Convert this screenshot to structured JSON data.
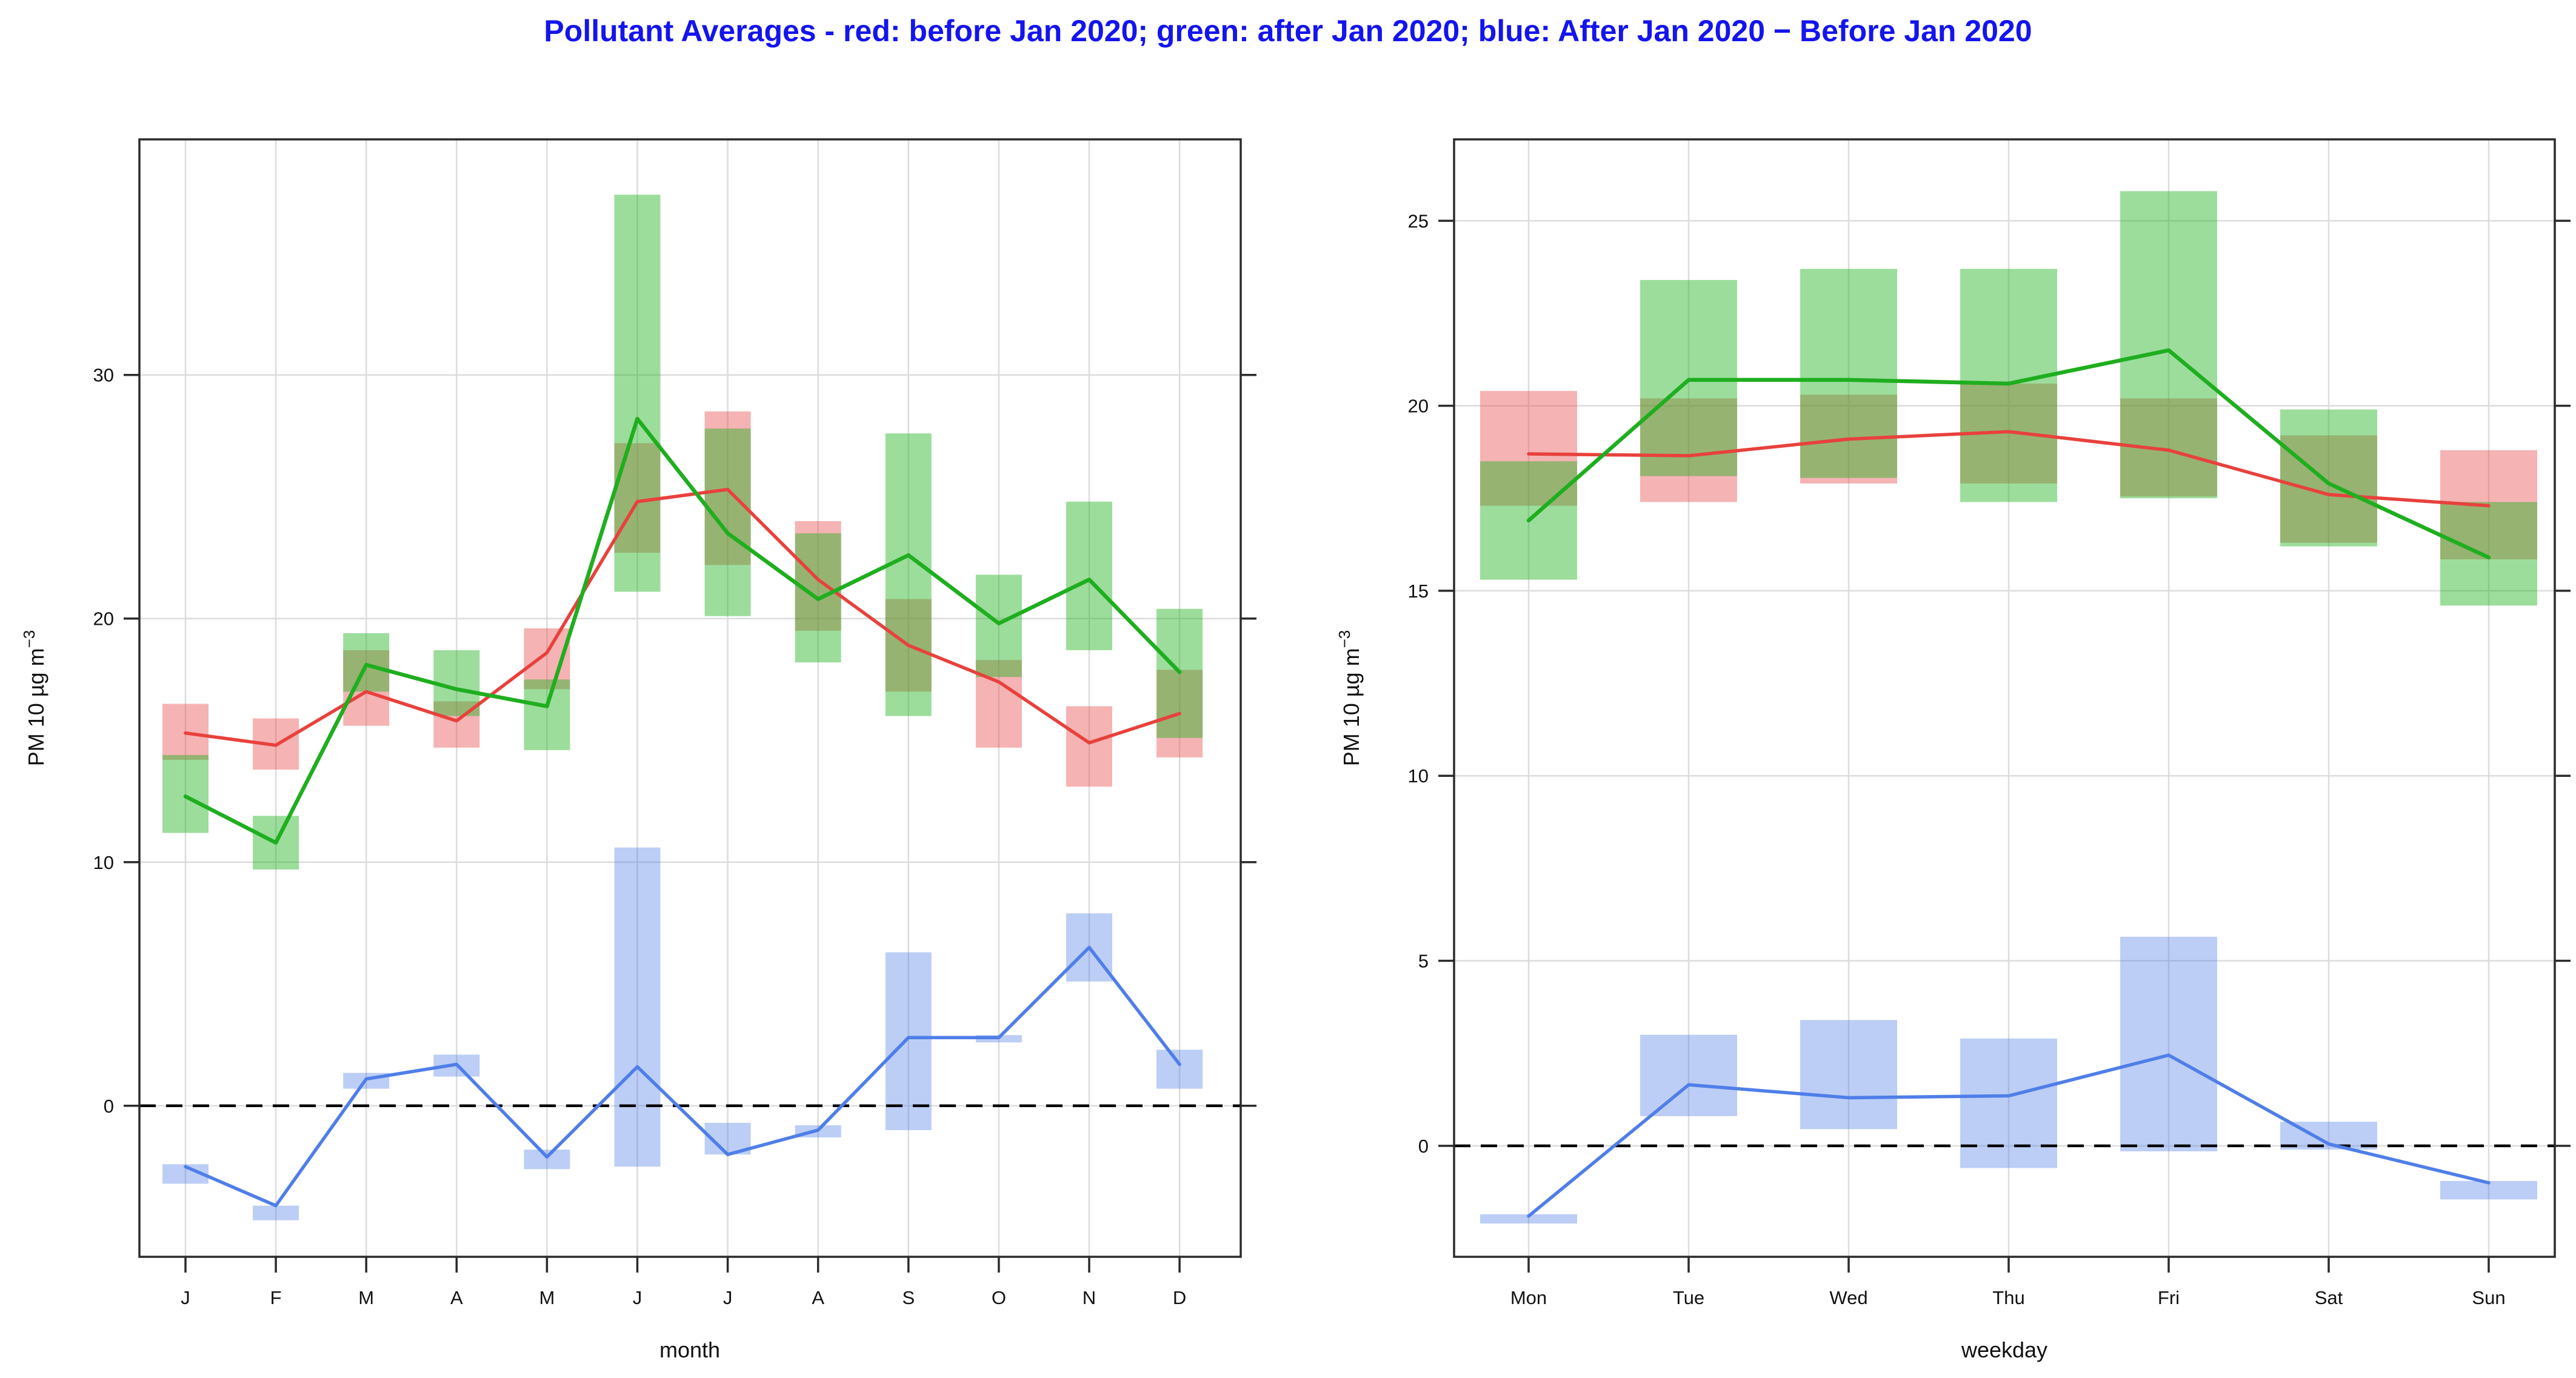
{
  "title": {
    "text": "Pollutant Averages - red: before Jan 2020; green: after Jan 2020; blue: After Jan 2020 − Before Jan 2020",
    "color": "#1414ee"
  },
  "palette": {
    "red_line": "#e8413c",
    "green_line": "#1fae1f",
    "blue_line": "#4f7ee8",
    "red_band": "rgba(232,75,75,0.42)",
    "green_band": "rgba(35,179,35,0.45)",
    "blue_band": "rgba(79,126,232,0.38)",
    "grid": "#dcdcdc",
    "border": "#2b2b2b",
    "tick_text": "#111111",
    "zero_line": "#000000"
  },
  "chart_data": [
    {
      "type": "interval-line",
      "panel": "month",
      "xlabel": "month",
      "ylabel": "PM 10 µg m",
      "ylabel_sup": "−3",
      "categories": [
        "J",
        "F",
        "M",
        "A",
        "M",
        "J",
        "J",
        "A",
        "S",
        "O",
        "N",
        "D"
      ],
      "yticks": [
        0,
        10,
        20,
        30
      ],
      "ylim": [
        -6.2,
        39.67
      ],
      "zero_line": true,
      "grid": true,
      "legend_position": "none",
      "series": [
        {
          "name": "before Jan 2020",
          "color_key": "red",
          "values": [
            15.3,
            14.8,
            17.0,
            15.8,
            18.6,
            24.8,
            25.3,
            21.6,
            18.9,
            17.4,
            14.9,
            16.1
          ],
          "band_low": [
            14.2,
            13.8,
            15.6,
            14.7,
            17.1,
            22.7,
            22.2,
            19.5,
            17.0,
            14.7,
            13.1,
            14.3
          ],
          "band_high": [
            16.5,
            15.9,
            18.7,
            16.6,
            19.6,
            27.2,
            28.5,
            24.0,
            20.8,
            18.3,
            16.4,
            17.9
          ]
        },
        {
          "name": "after Jan 2020",
          "color_key": "green",
          "values": [
            12.7,
            10.8,
            18.1,
            17.1,
            16.4,
            28.2,
            23.5,
            20.8,
            22.6,
            19.8,
            21.6,
            17.8
          ],
          "band_low": [
            11.2,
            9.7,
            17.0,
            16.0,
            14.6,
            21.1,
            20.1,
            18.2,
            16.0,
            17.6,
            18.7,
            15.1
          ],
          "band_high": [
            14.4,
            11.9,
            19.4,
            18.7,
            17.5,
            37.4,
            27.8,
            23.5,
            27.6,
            21.8,
            24.8,
            20.4
          ]
        },
        {
          "name": "After Jan 2020 − Before Jan 2020",
          "color_key": "blue",
          "values": [
            -2.5,
            -4.1,
            1.1,
            1.7,
            -2.1,
            1.6,
            -2.0,
            -1.0,
            2.8,
            2.8,
            6.5,
            1.7
          ],
          "band_low": [
            -3.2,
            -4.7,
            0.7,
            1.2,
            -2.6,
            -2.5,
            -2.0,
            -1.3,
            -1.0,
            2.6,
            5.1,
            0.7
          ],
          "band_high": [
            -2.4,
            -4.1,
            1.35,
            2.1,
            -1.8,
            10.6,
            -0.7,
            -0.8,
            6.3,
            2.9,
            7.9,
            2.3
          ]
        }
      ]
    },
    {
      "type": "interval-line",
      "panel": "weekday",
      "xlabel": "weekday",
      "ylabel": "PM 10 µg m",
      "ylabel_sup": "−3",
      "categories": [
        "Mon",
        "Tue",
        "Wed",
        "Thu",
        "Fri",
        "Sat",
        "Sun"
      ],
      "yticks": [
        0,
        5,
        10,
        15,
        20,
        25
      ],
      "ylim": [
        -3.0,
        27.2
      ],
      "zero_line": true,
      "grid": true,
      "legend_position": "none",
      "series": [
        {
          "name": "before Jan 2020",
          "color_key": "red",
          "values": [
            18.7,
            18.65,
            19.1,
            19.3,
            18.8,
            17.6,
            17.3
          ],
          "band_low": [
            17.3,
            17.4,
            17.9,
            17.9,
            17.55,
            16.3,
            15.85
          ],
          "band_high": [
            20.4,
            20.2,
            20.3,
            20.6,
            20.2,
            19.2,
            18.8
          ]
        },
        {
          "name": "after Jan 2020",
          "color_key": "green",
          "values": [
            16.9,
            20.7,
            20.7,
            20.6,
            21.5,
            17.9,
            15.9
          ],
          "band_low": [
            15.3,
            18.1,
            18.05,
            17.4,
            17.5,
            16.2,
            14.6
          ],
          "band_high": [
            18.5,
            23.4,
            23.7,
            23.7,
            25.8,
            19.9,
            17.4
          ]
        },
        {
          "name": "After Jan 2020 − Before Jan 2020",
          "color_key": "blue",
          "values": [
            -1.9,
            1.65,
            1.3,
            1.35,
            2.45,
            0.05,
            -1.0
          ],
          "band_low": [
            -2.1,
            0.8,
            0.45,
            -0.6,
            -0.15,
            -0.1,
            -1.45
          ],
          "band_high": [
            -1.85,
            3.0,
            3.4,
            2.9,
            5.65,
            0.65,
            -0.95
          ]
        }
      ]
    }
  ]
}
